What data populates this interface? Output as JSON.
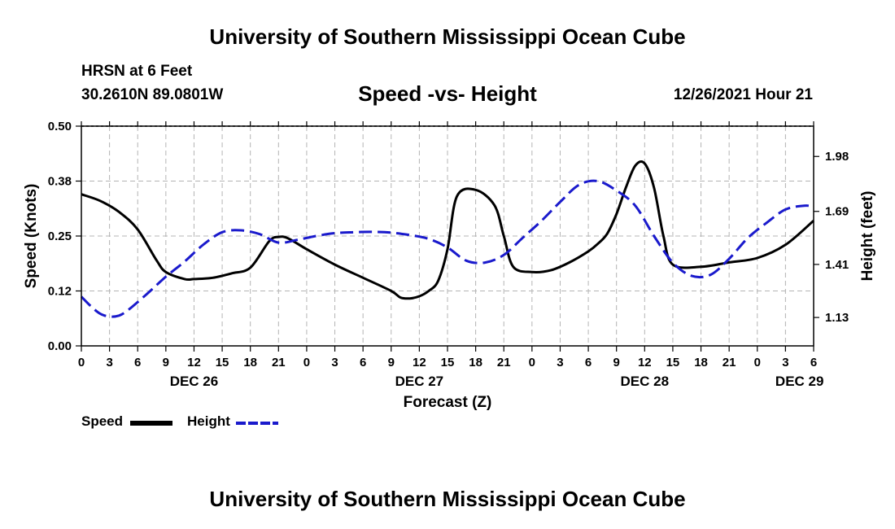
{
  "header": {
    "title": "University of Southern Mississippi Ocean Cube",
    "station": "HRSN at 6 Feet",
    "coordinates": "30.2610N  89.0801W",
    "datetime": "12/26/2021 Hour 21"
  },
  "footer": {
    "title": "University of Southern Mississippi Ocean Cube"
  },
  "legend": {
    "speed_label": "Speed",
    "height_label": "Height"
  },
  "colors": {
    "speed": "#000000",
    "height": "#1a1acc",
    "grid": "#b4b4b4"
  },
  "chart_data": {
    "type": "line",
    "title": "Speed -vs- Height",
    "xlabel": "Forecast (Z)",
    "ylabel": "Speed (Knots)",
    "y2label": "Height (feet)",
    "x_units": "hours since 0Z Dec 26",
    "xlim": [
      0,
      78
    ],
    "ylim": [
      0,
      0.5
    ],
    "y2lim": [
      0.98,
      2.14
    ],
    "yticks": [
      0,
      0.125,
      0.25,
      0.375,
      0.5
    ],
    "ytick_labels": [
      "0.00",
      "0.12",
      "0.25",
      "0.38",
      "0.50"
    ],
    "y2ticks": [
      1.13,
      1.41,
      1.69,
      1.98
    ],
    "y2tick_labels": [
      "1.13",
      "1.41",
      "1.69",
      "1.98"
    ],
    "xticks": [
      0,
      3,
      6,
      9,
      12,
      15,
      18,
      21,
      24,
      27,
      30,
      33,
      36,
      39,
      42,
      45,
      48,
      51,
      54,
      57,
      60,
      63,
      66,
      69,
      72,
      75,
      78
    ],
    "xtick_labels": [
      "0",
      "3",
      "6",
      "9",
      "12",
      "15",
      "18",
      "21",
      "0",
      "3",
      "6",
      "9",
      "12",
      "15",
      "18",
      "21",
      "0",
      "3",
      "6",
      "9",
      "12",
      "15",
      "18",
      "21",
      "0",
      "3",
      "6"
    ],
    "date_labels": [
      {
        "x": 12,
        "label": "DEC 26"
      },
      {
        "x": 36,
        "label": "DEC 27"
      },
      {
        "x": 60,
        "label": "DEC 28"
      },
      {
        "x": 76.5,
        "label": "DEC 29"
      }
    ],
    "grid": true,
    "legend_position": "bottom-left",
    "series": [
      {
        "name": "Speed",
        "axis": "left",
        "style": "solid",
        "x": [
          0,
          2,
          4,
          6,
          8,
          9,
          11,
          12,
          14,
          16,
          18,
          20,
          21,
          22,
          24,
          27,
          30,
          33,
          34,
          35,
          36,
          37,
          38,
          39,
          40,
          42,
          44,
          45,
          46,
          48,
          50,
          52,
          54,
          55,
          56,
          57,
          58,
          59,
          60,
          61,
          62,
          63,
          66,
          69,
          72,
          75,
          78
        ],
        "y": [
          0.345,
          0.33,
          0.305,
          0.265,
          0.195,
          0.168,
          0.152,
          0.152,
          0.155,
          0.165,
          0.178,
          0.238,
          0.248,
          0.245,
          0.22,
          0.185,
          0.155,
          0.125,
          0.11,
          0.108,
          0.113,
          0.125,
          0.148,
          0.22,
          0.34,
          0.355,
          0.32,
          0.25,
          0.18,
          0.168,
          0.172,
          0.19,
          0.215,
          0.232,
          0.255,
          0.3,
          0.36,
          0.41,
          0.415,
          0.36,
          0.25,
          0.185,
          0.18,
          0.19,
          0.2,
          0.23,
          0.285
        ]
      },
      {
        "name": "Height",
        "axis": "right",
        "style": "dashed",
        "x": [
          0,
          1,
          2,
          3,
          4,
          5,
          7,
          9,
          11,
          13,
          15,
          17,
          19,
          21,
          23,
          25,
          27,
          29,
          31,
          33,
          35,
          37,
          39,
          41,
          43,
          45,
          47,
          49,
          51,
          53,
          55,
          57,
          59,
          61,
          63,
          65,
          67,
          69,
          71,
          73,
          75,
          77,
          78
        ],
        "y": [
          1.24,
          1.19,
          1.15,
          1.135,
          1.14,
          1.17,
          1.255,
          1.345,
          1.425,
          1.515,
          1.58,
          1.59,
          1.57,
          1.525,
          1.54,
          1.56,
          1.575,
          1.58,
          1.582,
          1.578,
          1.565,
          1.545,
          1.5,
          1.43,
          1.42,
          1.46,
          1.55,
          1.64,
          1.74,
          1.83,
          1.85,
          1.8,
          1.72,
          1.56,
          1.42,
          1.35,
          1.355,
          1.44,
          1.55,
          1.63,
          1.7,
          1.72,
          1.715
        ]
      }
    ]
  }
}
